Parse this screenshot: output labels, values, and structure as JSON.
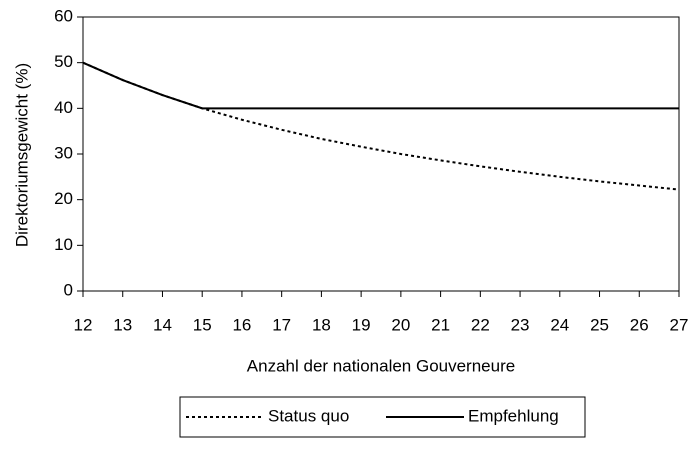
{
  "chart_data": {
    "type": "line",
    "x_label": "Anzahl der nationalen Gouverneure",
    "y_label": "Direktoriumsgewicht (%)",
    "x": [
      12,
      13,
      14,
      15,
      16,
      17,
      18,
      19,
      20,
      21,
      22,
      23,
      24,
      25,
      26,
      27
    ],
    "series": [
      {
        "name": "Status quo",
        "color": "#000000",
        "dash": "dotted",
        "values": [
          50,
          46.2,
          42.9,
          40,
          37.5,
          35.3,
          33.3,
          31.6,
          30,
          28.6,
          27.3,
          26.1,
          25,
          24,
          23.1,
          22.2
        ]
      },
      {
        "name": "Empfehlung",
        "color": "#000000",
        "dash": "solid",
        "values": [
          50,
          46.2,
          42.9,
          40,
          40,
          40,
          40,
          40,
          40,
          40,
          40,
          40,
          40,
          40,
          40,
          40
        ]
      }
    ],
    "xlim": [
      12,
      27
    ],
    "xticks": [
      12,
      13,
      14,
      15,
      16,
      17,
      18,
      19,
      20,
      21,
      22,
      23,
      24,
      25,
      26,
      27
    ],
    "ylim": [
      0,
      60
    ],
    "yticks": [
      0,
      10,
      20,
      30,
      40,
      50,
      60
    ],
    "legend": "bottom"
  }
}
